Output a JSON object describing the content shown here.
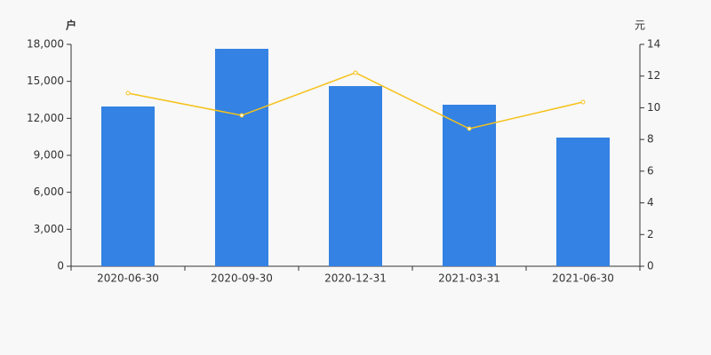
{
  "chart_data": {
    "type": "bar",
    "y_label": "户",
    "y2_label": "元",
    "categories": [
      "2020-06-30",
      "2020-09-30",
      "2020-12-31",
      "2021-03-31",
      "2021-06-30"
    ],
    "series": [
      {
        "type": "bar",
        "color": "#3482e3",
        "values": [
          12960,
          17640,
          14616,
          13104,
          10440
        ]
      },
      {
        "type": "line",
        "axis": "y2",
        "color": "#f5c21b",
        "values": [
          10.92,
          9.52,
          12.21,
          8.68,
          10.36
        ]
      }
    ],
    "ylim": [
      0,
      18000
    ],
    "yticks": [
      0,
      {
        "value": 3000,
        "label": "3,000"
      },
      {
        "value": 6000,
        "label": "6,000"
      },
      {
        "value": 9000,
        "label": "9,000"
      },
      {
        "value": 12000,
        "label": "12,000"
      },
      {
        "value": 15000,
        "label": "15,000"
      },
      {
        "value": 18000,
        "label": "18,000"
      }
    ],
    "y2lim": [
      0,
      14
    ],
    "y2ticks": [
      0,
      2,
      4,
      6,
      8,
      10,
      12,
      14
    ],
    "grid": false
  }
}
